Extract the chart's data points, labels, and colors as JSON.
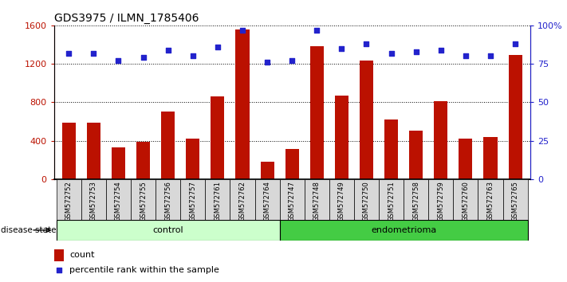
{
  "title": "GDS3975 / ILMN_1785406",
  "samples": [
    "GSM572752",
    "GSM572753",
    "GSM572754",
    "GSM572755",
    "GSM572756",
    "GSM572757",
    "GSM572761",
    "GSM572762",
    "GSM572764",
    "GSM572747",
    "GSM572748",
    "GSM572749",
    "GSM572750",
    "GSM572751",
    "GSM572758",
    "GSM572759",
    "GSM572760",
    "GSM572763",
    "GSM572765"
  ],
  "counts": [
    590,
    590,
    330,
    390,
    700,
    420,
    860,
    1560,
    180,
    310,
    1380,
    870,
    1230,
    620,
    500,
    810,
    420,
    440,
    1290
  ],
  "percentiles": [
    82,
    82,
    77,
    79,
    84,
    80,
    86,
    97,
    76,
    77,
    97,
    85,
    88,
    82,
    83,
    84,
    80,
    80,
    88
  ],
  "groups": [
    "control",
    "control",
    "control",
    "control",
    "control",
    "control",
    "control",
    "control",
    "control",
    "endometrioma",
    "endometrioma",
    "endometrioma",
    "endometrioma",
    "endometrioma",
    "endometrioma",
    "endometrioma",
    "endometrioma",
    "endometrioma",
    "endometrioma"
  ],
  "bar_color": "#bb1100",
  "dot_color": "#2222cc",
  "ylim_left": [
    0,
    1600
  ],
  "ylim_right": [
    0,
    100
  ],
  "yticks_left": [
    0,
    400,
    800,
    1200,
    1600
  ],
  "yticks_right": [
    0,
    25,
    50,
    75,
    100
  ],
  "control_color_light": "#ccffcc",
  "control_color_dark": "#66dd66",
  "endometrioma_color": "#44cc44",
  "legend_count": "count",
  "legend_percentile": "percentile rank within the sample",
  "xlabel_bg": "#d8d8d8",
  "n_control": 9,
  "n_endometrioma": 10
}
